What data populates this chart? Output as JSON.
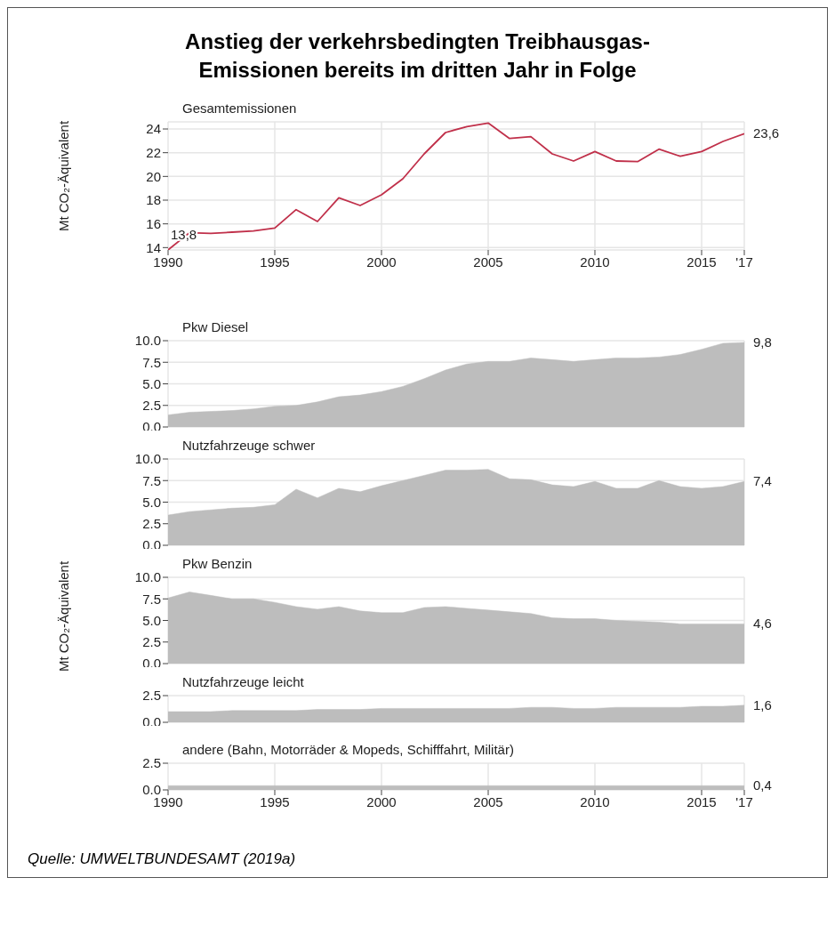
{
  "chart_data": [
    {
      "type": "line",
      "title": "Anstieg der verkehrsbedingten Treibhausgas-Emissionen bereits im dritten Jahr in Folge",
      "subtitle": "Gesamtemissionen",
      "ylabel": "Mt CO₂-Äquivalent",
      "x": [
        1990,
        1991,
        1992,
        1993,
        1994,
        1995,
        1996,
        1997,
        1998,
        1999,
        2000,
        2001,
        2002,
        2003,
        2004,
        2005,
        2006,
        2007,
        2008,
        2009,
        2010,
        2011,
        2012,
        2013,
        2014,
        2015,
        2016,
        2017
      ],
      "color": "#c0304a",
      "values": [
        13.8,
        15.25,
        15.2,
        15.3,
        15.4,
        15.65,
        17.2,
        16.2,
        18.2,
        17.55,
        18.45,
        19.8,
        21.9,
        23.7,
        24.2,
        24.5,
        23.2,
        23.35,
        21.9,
        21.3,
        22.1,
        21.3,
        21.25,
        22.3,
        21.7,
        22.1,
        22.95,
        23.6
      ],
      "value_labels": [
        "13,8",
        null,
        null,
        null,
        null,
        null,
        null,
        null,
        null,
        null,
        null,
        null,
        null,
        null,
        null,
        null,
        null,
        null,
        null,
        null,
        null,
        null,
        null,
        null,
        null,
        null,
        null,
        "23,6"
      ],
      "xlim": [
        1990,
        2017
      ],
      "xticks": [
        1990,
        1995,
        2000,
        2005,
        2010,
        2015,
        {
          "value": 2017,
          "label": "'17"
        }
      ],
      "ylim": [
        13.8,
        24.6
      ],
      "yticks": [
        14,
        16,
        18,
        20,
        22,
        24
      ],
      "grid": true
    },
    {
      "type": "area",
      "subtitle": "Pkw Diesel",
      "x": [
        1990,
        1991,
        1992,
        1993,
        1994,
        1995,
        1996,
        1997,
        1998,
        1999,
        2000,
        2001,
        2002,
        2003,
        2004,
        2005,
        2006,
        2007,
        2008,
        2009,
        2010,
        2011,
        2012,
        2013,
        2014,
        2015,
        2016,
        2017
      ],
      "color": "#bdbdbd",
      "values": [
        1.4,
        1.7,
        1.8,
        1.9,
        2.1,
        2.4,
        2.5,
        2.9,
        3.5,
        3.7,
        4.1,
        4.7,
        5.6,
        6.6,
        7.3,
        7.6,
        7.6,
        8.0,
        7.8,
        7.6,
        7.8,
        8.0,
        8.0,
        8.1,
        8.4,
        9.0,
        9.7,
        9.8
      ],
      "value_labels": [
        null,
        null,
        null,
        null,
        null,
        null,
        null,
        null,
        null,
        null,
        null,
        null,
        null,
        null,
        null,
        null,
        null,
        null,
        null,
        null,
        null,
        null,
        null,
        null,
        null,
        null,
        null,
        "9,8"
      ],
      "xlim": [
        1990,
        2017
      ],
      "xticks": [
        1990,
        1995,
        2000,
        2005,
        2010,
        2015,
        2017
      ],
      "ylim": [
        0,
        10
      ],
      "yticks": [
        {
          "value": 0,
          "label": "0.0"
        },
        2.5,
        {
          "value": 5,
          "label": "5.0"
        },
        7.5,
        {
          "value": 10,
          "label": "10.0"
        }
      ],
      "grid": true,
      "tick_labels": "y"
    },
    {
      "type": "area",
      "subtitle": "Nutzfahrzeuge schwer",
      "x": [
        1990,
        1991,
        1992,
        1993,
        1994,
        1995,
        1996,
        1997,
        1998,
        1999,
        2000,
        2001,
        2002,
        2003,
        2004,
        2005,
        2006,
        2007,
        2008,
        2009,
        2010,
        2011,
        2012,
        2013,
        2014,
        2015,
        2016,
        2017
      ],
      "color": "#bdbdbd",
      "values": [
        3.5,
        3.9,
        4.1,
        4.3,
        4.4,
        4.7,
        6.5,
        5.5,
        6.6,
        6.2,
        6.9,
        7.5,
        8.1,
        8.7,
        8.7,
        8.8,
        7.7,
        7.6,
        7.0,
        6.8,
        7.4,
        6.6,
        6.6,
        7.5,
        6.8,
        6.6,
        6.8,
        7.4
      ],
      "value_labels": [
        null,
        null,
        null,
        null,
        null,
        null,
        null,
        null,
        null,
        null,
        null,
        null,
        null,
        null,
        null,
        null,
        null,
        null,
        null,
        null,
        null,
        null,
        null,
        null,
        null,
        null,
        null,
        "7,4"
      ],
      "xlim": [
        1990,
        2017
      ],
      "xticks": [
        1990,
        1995,
        2000,
        2005,
        2010,
        2015,
        2017
      ],
      "ylim": [
        0,
        10
      ],
      "yticks": [
        {
          "value": 0,
          "label": "0.0"
        },
        2.5,
        {
          "value": 5,
          "label": "5.0"
        },
        7.5,
        {
          "value": 10,
          "label": "10.0"
        }
      ],
      "grid": true,
      "tick_labels": "y"
    },
    {
      "type": "area",
      "subtitle": "Pkw Benzin",
      "ylabel": "Mt CO₂-Äquivalent",
      "x": [
        1990,
        1991,
        1992,
        1993,
        1994,
        1995,
        1996,
        1997,
        1998,
        1999,
        2000,
        2001,
        2002,
        2003,
        2004,
        2005,
        2006,
        2007,
        2008,
        2009,
        2010,
        2011,
        2012,
        2013,
        2014,
        2015,
        2016,
        2017
      ],
      "color": "#bdbdbd",
      "values": [
        7.6,
        8.3,
        7.9,
        7.5,
        7.5,
        7.1,
        6.6,
        6.3,
        6.6,
        6.1,
        5.9,
        5.9,
        6.5,
        6.6,
        6.4,
        6.2,
        6.0,
        5.8,
        5.3,
        5.2,
        5.2,
        5.0,
        4.9,
        4.8,
        4.6,
        4.6,
        4.6,
        4.6
      ],
      "value_labels": [
        null,
        null,
        null,
        null,
        null,
        null,
        null,
        null,
        null,
        null,
        null,
        null,
        null,
        null,
        null,
        null,
        null,
        null,
        null,
        null,
        null,
        null,
        null,
        null,
        null,
        null,
        null,
        "4,6"
      ],
      "xlim": [
        1990,
        2017
      ],
      "xticks": [
        1990,
        1995,
        2000,
        2005,
        2010,
        2015,
        2017
      ],
      "ylim": [
        0,
        10
      ],
      "yticks": [
        {
          "value": 0,
          "label": "0.0"
        },
        2.5,
        {
          "value": 5,
          "label": "5.0"
        },
        7.5,
        {
          "value": 10,
          "label": "10.0"
        }
      ],
      "grid": true,
      "tick_labels": "y"
    },
    {
      "type": "area",
      "subtitle": "Nutzfahrzeuge leicht",
      "x": [
        1990,
        1991,
        1992,
        1993,
        1994,
        1995,
        1996,
        1997,
        1998,
        1999,
        2000,
        2001,
        2002,
        2003,
        2004,
        2005,
        2006,
        2007,
        2008,
        2009,
        2010,
        2011,
        2012,
        2013,
        2014,
        2015,
        2016,
        2017
      ],
      "color": "#bdbdbd",
      "values": [
        1.0,
        1.0,
        1.0,
        1.1,
        1.1,
        1.1,
        1.1,
        1.2,
        1.2,
        1.2,
        1.3,
        1.3,
        1.3,
        1.3,
        1.3,
        1.3,
        1.3,
        1.4,
        1.4,
        1.3,
        1.3,
        1.4,
        1.4,
        1.4,
        1.4,
        1.5,
        1.5,
        1.6
      ],
      "value_labels": [
        null,
        null,
        null,
        null,
        null,
        null,
        null,
        null,
        null,
        null,
        null,
        null,
        null,
        null,
        null,
        null,
        null,
        null,
        null,
        null,
        null,
        null,
        null,
        null,
        null,
        null,
        null,
        "1,6"
      ],
      "xlim": [
        1990,
        2017
      ],
      "xticks": [
        1990,
        1995,
        2000,
        2005,
        2010,
        2015,
        2017
      ],
      "ylim": [
        0,
        2.5
      ],
      "yticks": [
        {
          "value": 0,
          "label": "0.0"
        },
        2.5
      ],
      "grid": true,
      "tick_labels": "y"
    },
    {
      "type": "area",
      "subtitle": "andere (Bahn, Motorräder & Mopeds, Schifffahrt, Militär)",
      "x": [
        1990,
        1991,
        1992,
        1993,
        1994,
        1995,
        1996,
        1997,
        1998,
        1999,
        2000,
        2001,
        2002,
        2003,
        2004,
        2005,
        2006,
        2007,
        2008,
        2009,
        2010,
        2011,
        2012,
        2013,
        2014,
        2015,
        2016,
        2017
      ],
      "color": "#bdbdbd",
      "values": [
        0.4,
        0.4,
        0.4,
        0.4,
        0.4,
        0.4,
        0.4,
        0.4,
        0.4,
        0.4,
        0.4,
        0.4,
        0.4,
        0.4,
        0.4,
        0.4,
        0.4,
        0.4,
        0.4,
        0.4,
        0.4,
        0.4,
        0.4,
        0.4,
        0.4,
        0.4,
        0.4,
        0.4
      ],
      "value_labels": [
        null,
        null,
        null,
        null,
        null,
        null,
        null,
        null,
        null,
        null,
        null,
        null,
        null,
        null,
        null,
        null,
        null,
        null,
        null,
        null,
        null,
        null,
        null,
        null,
        null,
        null,
        null,
        "0,4"
      ],
      "xlim": [
        1990,
        2017
      ],
      "xticks": [
        1990,
        1995,
        2000,
        2005,
        2010,
        2015,
        {
          "value": 2017,
          "label": "'17"
        }
      ],
      "ylim": [
        0,
        2.5
      ],
      "yticks": [
        {
          "value": 0,
          "label": "0.0"
        },
        2.5
      ],
      "grid": true,
      "annotations": [
        "Quelle: UMWELTBUNDESAMT (2019a)"
      ]
    }
  ]
}
